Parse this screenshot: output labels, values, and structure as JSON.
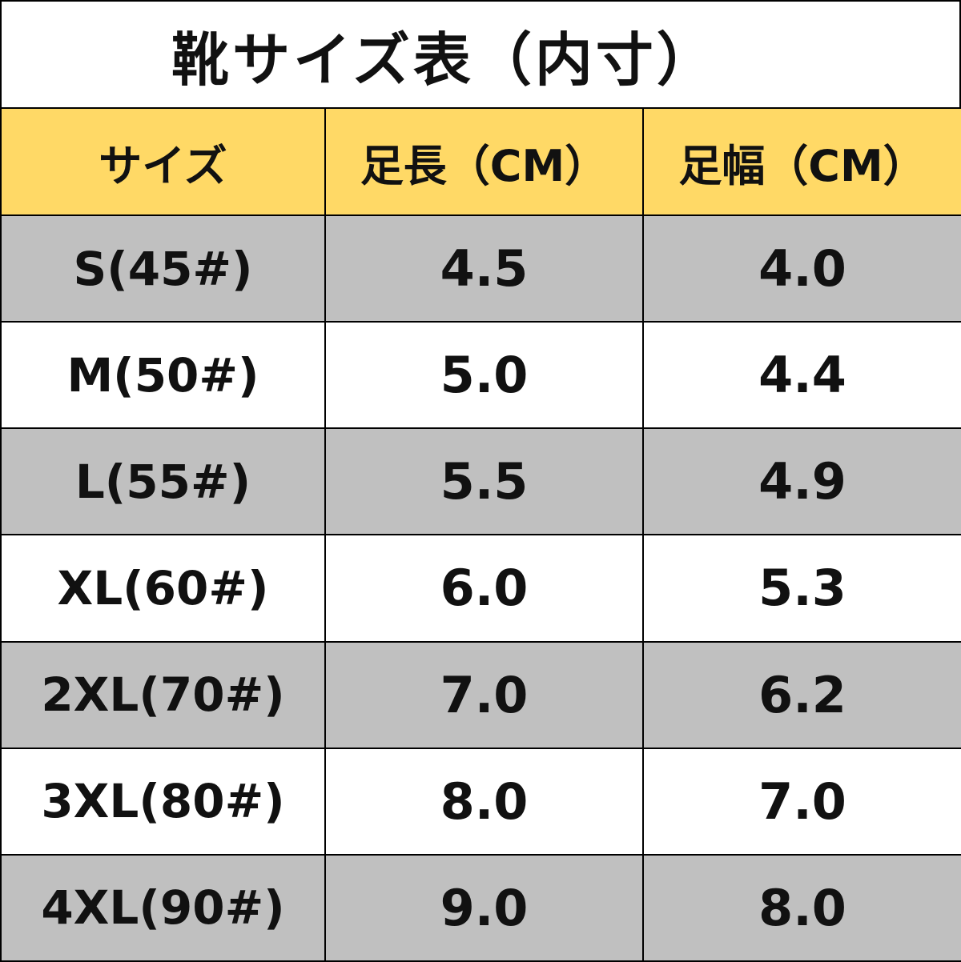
{
  "title": "靴サイズ表（内寸）",
  "colors": {
    "header_bg": "#FFD966",
    "shaded_row_bg": "#C0C0C0",
    "plain_row_bg": "#FFFFFF",
    "border": "#000000",
    "text": "#111111"
  },
  "table": {
    "headers": [
      "サイズ",
      "足長（CM）",
      "足幅（CM）"
    ],
    "rows": [
      {
        "size": "S(45#)",
        "length": "4.5",
        "width": "4.0",
        "shaded": true
      },
      {
        "size": "M(50#)",
        "length": "5.0",
        "width": "4.4",
        "shaded": false
      },
      {
        "size": "L(55#)",
        "length": "5.5",
        "width": "4.9",
        "shaded": true
      },
      {
        "size": "XL(60#)",
        "length": "6.0",
        "width": "5.3",
        "shaded": false
      },
      {
        "size": "2XL(70#)",
        "length": "7.0",
        "width": "6.2",
        "shaded": true
      },
      {
        "size": "3XL(80#)",
        "length": "8.0",
        "width": "7.0",
        "shaded": false
      },
      {
        "size": "4XL(90#)",
        "length": "9.0",
        "width": "8.0",
        "shaded": true
      }
    ]
  }
}
